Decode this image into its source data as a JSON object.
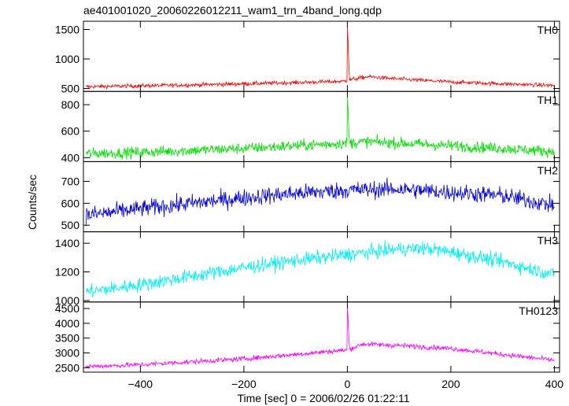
{
  "chart_data": {
    "type": "line",
    "title": "ae401001020_20060226012211_wam1_trn_4band_long.qdp",
    "xlabel": "Time [sec] 0 = 2006/02/26 01:22:11",
    "ylabel": "Counts/sec",
    "xlim": [
      -510,
      410
    ],
    "x_ticks": [
      -400,
      -200,
      0,
      200,
      400
    ],
    "x_tick_labels": [
      "−400",
      "−200",
      "0",
      "200",
      "400"
    ],
    "grid": false,
    "legend": "none",
    "panels": [
      {
        "name": "TH0",
        "color": "#ff0000",
        "ylim": [
          450,
          1640
        ],
        "y_ticks": [
          500,
          1000,
          1500
        ],
        "y_tick_labels": [
          "500",
          "1000",
          "1500"
        ],
        "envelope": [
          [
            -505,
            530
          ],
          [
            -400,
            545
          ],
          [
            -300,
            560
          ],
          [
            -200,
            580
          ],
          [
            -100,
            600
          ],
          [
            -10,
            620
          ],
          [
            0,
            640
          ],
          [
            40,
            700
          ],
          [
            100,
            660
          ],
          [
            200,
            610
          ],
          [
            300,
            580
          ],
          [
            400,
            550
          ]
        ],
        "noise": 25,
        "spike": {
          "x": 0,
          "peak": 1640
        },
        "points": 900
      },
      {
        "name": "TH1",
        "color": "#00e000",
        "ylim": [
          370,
          900
        ],
        "y_ticks": [
          400,
          600,
          800
        ],
        "y_tick_labels": [
          "400",
          "600",
          "800"
        ],
        "envelope": [
          [
            -505,
            430
          ],
          [
            -400,
            440
          ],
          [
            -300,
            455
          ],
          [
            -200,
            470
          ],
          [
            -100,
            490
          ],
          [
            0,
            510
          ],
          [
            40,
            520
          ],
          [
            100,
            510
          ],
          [
            200,
            490
          ],
          [
            300,
            470
          ],
          [
            400,
            445
          ]
        ],
        "noise": 30,
        "spike": {
          "x": 0,
          "peak": 890
        },
        "points": 900
      },
      {
        "name": "TH2",
        "color": "#0000e0",
        "ylim": [
          470,
          790
        ],
        "y_ticks": [
          500,
          600,
          700
        ],
        "y_tick_labels": [
          "500",
          "600",
          "700"
        ],
        "envelope": [
          [
            -505,
            545
          ],
          [
            -400,
            575
          ],
          [
            -300,
            600
          ],
          [
            -200,
            625
          ],
          [
            -100,
            645
          ],
          [
            0,
            660
          ],
          [
            100,
            665
          ],
          [
            200,
            650
          ],
          [
            300,
            635
          ],
          [
            400,
            590
          ]
        ],
        "noise": 28,
        "points": 900
      },
      {
        "name": "TH3",
        "color": "#00f0f0",
        "ylim": [
          990,
          1480
        ],
        "y_ticks": [
          1000,
          1200,
          1400
        ],
        "y_tick_labels": [
          "1000",
          "1200",
          "1400"
        ],
        "envelope": [
          [
            -505,
            1060
          ],
          [
            -400,
            1110
          ],
          [
            -300,
            1170
          ],
          [
            -200,
            1230
          ],
          [
            -100,
            1280
          ],
          [
            0,
            1320
          ],
          [
            100,
            1360
          ],
          [
            150,
            1365
          ],
          [
            200,
            1340
          ],
          [
            300,
            1270
          ],
          [
            400,
            1180
          ]
        ],
        "noise": 35,
        "points": 900
      },
      {
        "name": "TH0123",
        "color": "#ff00ff",
        "ylim": [
          2350,
          4720
        ],
        "y_ticks": [
          2500,
          3000,
          3500,
          4000,
          4500
        ],
        "y_tick_labels": [
          "2500",
          "3000",
          "3500",
          "4000",
          "4500"
        ],
        "envelope": [
          [
            -505,
            2540
          ],
          [
            -400,
            2600
          ],
          [
            -300,
            2700
          ],
          [
            -200,
            2800
          ],
          [
            -100,
            2950
          ],
          [
            0,
            3100
          ],
          [
            30,
            3300
          ],
          [
            100,
            3250
          ],
          [
            200,
            3150
          ],
          [
            300,
            2950
          ],
          [
            400,
            2750
          ]
        ],
        "noise": 60,
        "spike": {
          "x": 0,
          "peak": 4700
        },
        "points": 900
      }
    ]
  }
}
